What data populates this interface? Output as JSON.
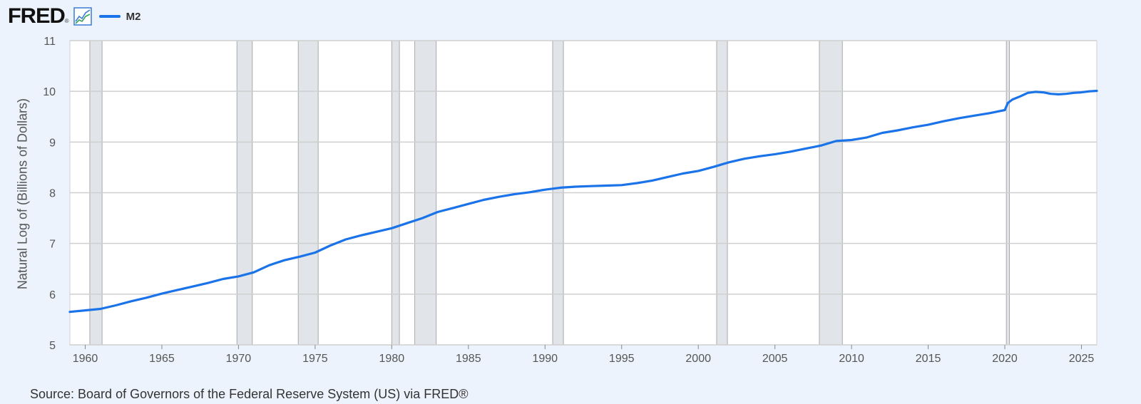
{
  "header": {
    "logo": "FRED",
    "logo_reg": "®",
    "icon": "line-graph-icon"
  },
  "colors": {
    "series": "#1a73e8",
    "recession": "#e1e5ea",
    "grid": "#cfcfcf",
    "background": "#ecf3fc"
  },
  "source": "Source: Board of Governors of the Federal Reserve System (US) via FRED®",
  "chart_data": {
    "type": "line",
    "ylabel": "Natural Log of (Billions of Dollars)",
    "xlabel": "",
    "xlim": [
      1959,
      2026
    ],
    "ylim": [
      5,
      11
    ],
    "yticks": [
      5,
      6,
      7,
      8,
      9,
      10,
      11
    ],
    "xticks": [
      1960,
      1965,
      1970,
      1975,
      1980,
      1985,
      1990,
      1995,
      2000,
      2005,
      2010,
      2015,
      2020,
      2025
    ],
    "grid": true,
    "legend_position": "top-left",
    "recessions": [
      [
        1960.3,
        1961.1
      ],
      [
        1969.9,
        1970.9
      ],
      [
        1973.9,
        1975.2
      ],
      [
        1980.0,
        1980.5
      ],
      [
        1981.5,
        1982.9
      ],
      [
        1990.5,
        1991.2
      ],
      [
        2001.2,
        2001.9
      ],
      [
        2007.9,
        2009.4
      ],
      [
        2020.1,
        2020.3
      ]
    ],
    "series": [
      {
        "name": "M2",
        "x": [
          1959,
          1960,
          1961,
          1962,
          1963,
          1964,
          1965,
          1966,
          1967,
          1968,
          1969,
          1970,
          1971,
          1972,
          1973,
          1974,
          1975,
          1976,
          1977,
          1978,
          1979,
          1980,
          1981,
          1982,
          1983,
          1984,
          1985,
          1986,
          1987,
          1988,
          1989,
          1990,
          1991,
          1992,
          1993,
          1994,
          1995,
          1996,
          1997,
          1998,
          1999,
          2000,
          2001,
          2002,
          2003,
          2004,
          2005,
          2006,
          2007,
          2008,
          2009,
          2010,
          2011,
          2012,
          2013,
          2014,
          2015,
          2016,
          2017,
          2018,
          2019,
          2020.0,
          2020.2,
          2020.5,
          2021,
          2021.5,
          2022,
          2022.5,
          2023,
          2023.5,
          2024,
          2024.5,
          2025,
          2025.5,
          2026
        ],
        "values": [
          5.65,
          5.68,
          5.71,
          5.78,
          5.86,
          5.93,
          6.01,
          6.08,
          6.15,
          6.22,
          6.3,
          6.35,
          6.43,
          6.57,
          6.67,
          6.74,
          6.82,
          6.96,
          7.08,
          7.16,
          7.23,
          7.3,
          7.4,
          7.5,
          7.62,
          7.7,
          7.78,
          7.86,
          7.92,
          7.97,
          8.01,
          8.06,
          8.1,
          8.12,
          8.13,
          8.14,
          8.15,
          8.19,
          8.24,
          8.31,
          8.38,
          8.43,
          8.51,
          8.6,
          8.67,
          8.72,
          8.76,
          8.81,
          8.87,
          8.93,
          9.02,
          9.04,
          9.09,
          9.18,
          9.23,
          9.29,
          9.34,
          9.41,
          9.47,
          9.52,
          9.57,
          9.63,
          9.77,
          9.84,
          9.9,
          9.97,
          9.99,
          9.98,
          9.95,
          9.94,
          9.95,
          9.97,
          9.98,
          10.0,
          10.01
        ]
      }
    ]
  }
}
